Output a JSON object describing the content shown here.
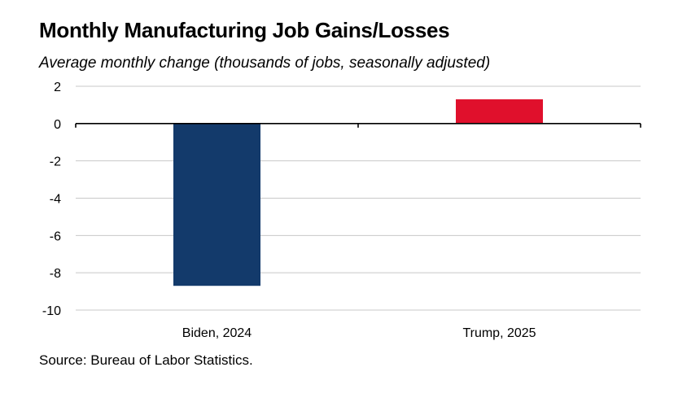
{
  "chart_data": {
    "type": "bar",
    "title": "Monthly Manufacturing Job Gains/Losses",
    "subtitle": "Average monthly change (thousands of jobs, seasonally adjusted)",
    "categories": [
      "Biden, 2024",
      "Trump, 2025"
    ],
    "values": [
      -8.7,
      1.3
    ],
    "colors": [
      "#133a6b",
      "#e0102c"
    ],
    "xlabel": "",
    "ylabel": "",
    "ylim": [
      -10,
      2
    ],
    "yticks": [
      2,
      0,
      -2,
      -4,
      -6,
      -8,
      -10
    ],
    "ytick_labels": [
      "2",
      "0",
      "-2",
      "-4",
      "-6",
      "-8",
      "-10"
    ],
    "grid": true,
    "legend": "none",
    "source": "Source: Bureau of Labor Statistics."
  }
}
